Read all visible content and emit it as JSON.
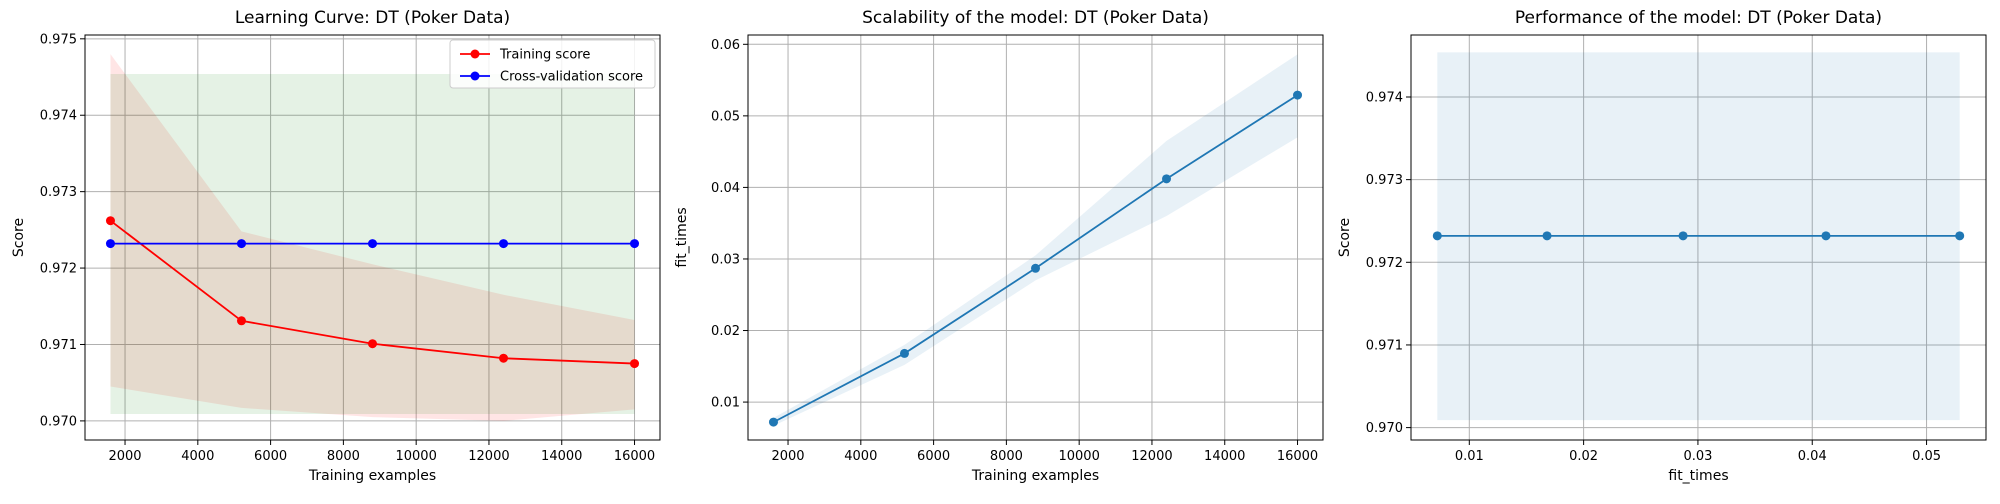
{
  "chart_data": [
    {
      "type": "line",
      "title": "Learning Curve: DT (Poker Data)",
      "xlabel": "Training examples",
      "ylabel": "Score",
      "xlim": [
        900,
        16700
      ],
      "ylim": [
        0.96975,
        0.97505
      ],
      "xticks": [
        2000,
        4000,
        6000,
        8000,
        10000,
        12000,
        14000,
        16000
      ],
      "yticks": [
        0.97,
        0.971,
        0.972,
        0.973,
        0.974,
        0.975
      ],
      "xtick_labels": [
        "2000",
        "4000",
        "6000",
        "8000",
        "10000",
        "12000",
        "14000",
        "16000"
      ],
      "ytick_labels": [
        "0.970",
        "0.971",
        "0.972",
        "0.973",
        "0.974",
        "0.975"
      ],
      "grid": true,
      "legend": "top-right",
      "x": [
        1600,
        5200,
        8800,
        12400,
        16000
      ],
      "series": [
        {
          "name": "Training score",
          "color": "#ff0000",
          "values": [
            0.97262,
            0.97131,
            0.97101,
            0.97082,
            0.97075
          ],
          "band_lower": [
            0.97045,
            0.97017,
            0.97005,
            0.97,
            0.97015
          ],
          "band_upper": [
            0.9748,
            0.97248,
            0.97205,
            0.97165,
            0.97132
          ]
        },
        {
          "name": "Cross-validation score",
          "color": "#0000ff",
          "values": [
            0.97232,
            0.97232,
            0.97232,
            0.97232,
            0.97232
          ],
          "band_lower": [
            0.97009,
            0.97009,
            0.97009,
            0.97009,
            0.97009
          ],
          "band_upper": [
            0.97454,
            0.97454,
            0.97454,
            0.97454,
            0.97454
          ]
        }
      ]
    },
    {
      "type": "line",
      "title": "Scalability of the model: DT (Poker Data)",
      "xlabel": "Training examples",
      "ylabel": "fit_times",
      "xlim": [
        900,
        16700
      ],
      "ylim": [
        0.0047,
        0.0613
      ],
      "xticks": [
        2000,
        4000,
        6000,
        8000,
        10000,
        12000,
        14000,
        16000
      ],
      "yticks": [
        0.01,
        0.02,
        0.03,
        0.04,
        0.05,
        0.06
      ],
      "xtick_labels": [
        "2000",
        "4000",
        "6000",
        "8000",
        "10000",
        "12000",
        "14000",
        "16000"
      ],
      "ytick_labels": [
        "0.01",
        "0.02",
        "0.03",
        "0.04",
        "0.05",
        "0.06"
      ],
      "grid": true,
      "x": [
        1600,
        5200,
        8800,
        12400,
        16000
      ],
      "series": [
        {
          "color": "#1f77b4",
          "values": [
            0.0072,
            0.0168,
            0.0287,
            0.0412,
            0.0529
          ],
          "band_lower": [
            0.0067,
            0.0152,
            0.027,
            0.036,
            0.047
          ],
          "band_upper": [
            0.0078,
            0.018,
            0.0305,
            0.0465,
            0.0586
          ]
        }
      ]
    },
    {
      "type": "line",
      "title": "Performance of the model: DT (Poker Data)",
      "xlabel": "fit_times",
      "ylabel": "Score",
      "xlim": [
        0.0049,
        0.0552
      ],
      "ylim": [
        0.96985,
        0.97475
      ],
      "xticks": [
        0.01,
        0.02,
        0.03,
        0.04,
        0.05
      ],
      "yticks": [
        0.97,
        0.971,
        0.972,
        0.973,
        0.974
      ],
      "xtick_labels": [
        "0.01",
        "0.02",
        "0.03",
        "0.04",
        "0.05"
      ],
      "ytick_labels": [
        "0.970",
        "0.971",
        "0.972",
        "0.973",
        "0.974"
      ],
      "grid": true,
      "x": [
        0.0072,
        0.0168,
        0.0287,
        0.0412,
        0.0529
      ],
      "series": [
        {
          "color": "#1f77b4",
          "values": [
            0.97232,
            0.97232,
            0.97232,
            0.97232,
            0.97232
          ],
          "band_lower": [
            0.97009,
            0.97009,
            0.97009,
            0.97009,
            0.97009
          ],
          "band_upper": [
            0.97454,
            0.97454,
            0.97454,
            0.97454,
            0.97454
          ]
        }
      ]
    }
  ]
}
